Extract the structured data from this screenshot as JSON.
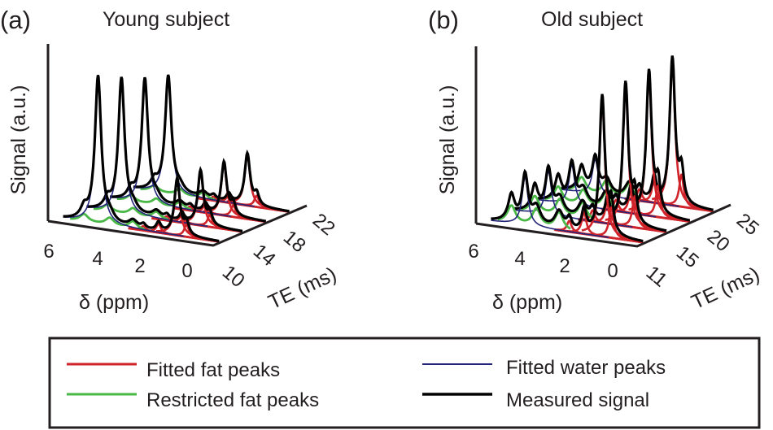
{
  "chart_data": [
    {
      "type": "waterfall",
      "panel_label": "(a)",
      "title": "Young subject",
      "xlabel": "δ (ppm)",
      "ylabel": "Signal (a.u.)",
      "zlabel": "TE (ms)",
      "x_ticks": [
        "6",
        "4",
        "2",
        "0"
      ],
      "x_range_ppm": [
        6.5,
        -0.6
      ],
      "te_ticks": [
        "10",
        "14",
        "18",
        "22"
      ],
      "te_values": [
        10,
        14,
        18,
        22
      ],
      "series": [
        {
          "name": "Measured signal",
          "te": 10,
          "water_amp": 1.0,
          "fat_amp": 0.38
        },
        {
          "name": "Measured signal",
          "te": 14,
          "water_amp": 0.92,
          "fat_amp": 0.37
        },
        {
          "name": "Measured signal",
          "te": 18,
          "water_amp": 0.85,
          "fat_amp": 0.36
        },
        {
          "name": "Measured signal",
          "te": 22,
          "water_amp": 0.8,
          "fat_amp": 0.35
        }
      ],
      "peaks_ppm": {
        "water": 4.7,
        "fat_main": 1.3,
        "fat_minor": [
          0.9,
          2.1,
          2.75,
          5.3
        ],
        "restricted_fat": [
          3.2,
          4.2,
          5.3
        ]
      }
    },
    {
      "type": "waterfall",
      "panel_label": "(b)",
      "title": "Old subject",
      "xlabel": "δ (ppm)",
      "ylabel": "Signal (a.u.)",
      "zlabel": "TE (ms)",
      "x_ticks": [
        "6",
        "4",
        "2",
        "0"
      ],
      "x_range_ppm": [
        6.5,
        -0.6
      ],
      "te_ticks": [
        "11",
        "15",
        "20",
        "25"
      ],
      "te_values": [
        11,
        15,
        20,
        25
      ],
      "series": [
        {
          "name": "Measured signal",
          "te": 11,
          "water_amp": 0.33,
          "fat_amp": 0.95
        },
        {
          "name": "Measured signal",
          "te": 15,
          "water_amp": 0.3,
          "fat_amp": 0.97
        },
        {
          "name": "Measured signal",
          "te": 20,
          "water_amp": 0.27,
          "fat_amp": 0.98
        },
        {
          "name": "Measured signal",
          "te": 25,
          "water_amp": 0.24,
          "fat_amp": 1.0
        }
      ],
      "peaks_ppm": {
        "water": 4.7,
        "fat_main": 1.3,
        "fat_minor": [
          0.9,
          2.1,
          2.75,
          5.3
        ],
        "restricted_fat": [
          3.2,
          4.2,
          5.3
        ]
      }
    }
  ],
  "legend": {
    "items": [
      {
        "label": "Fitted fat peaks",
        "color": "#d0232a"
      },
      {
        "label": "Restricted fat peaks",
        "color": "#4ab847"
      },
      {
        "label": "Fitted water peaks",
        "color": "#23257a"
      },
      {
        "label": "Measured signal",
        "color": "#000000"
      }
    ]
  }
}
